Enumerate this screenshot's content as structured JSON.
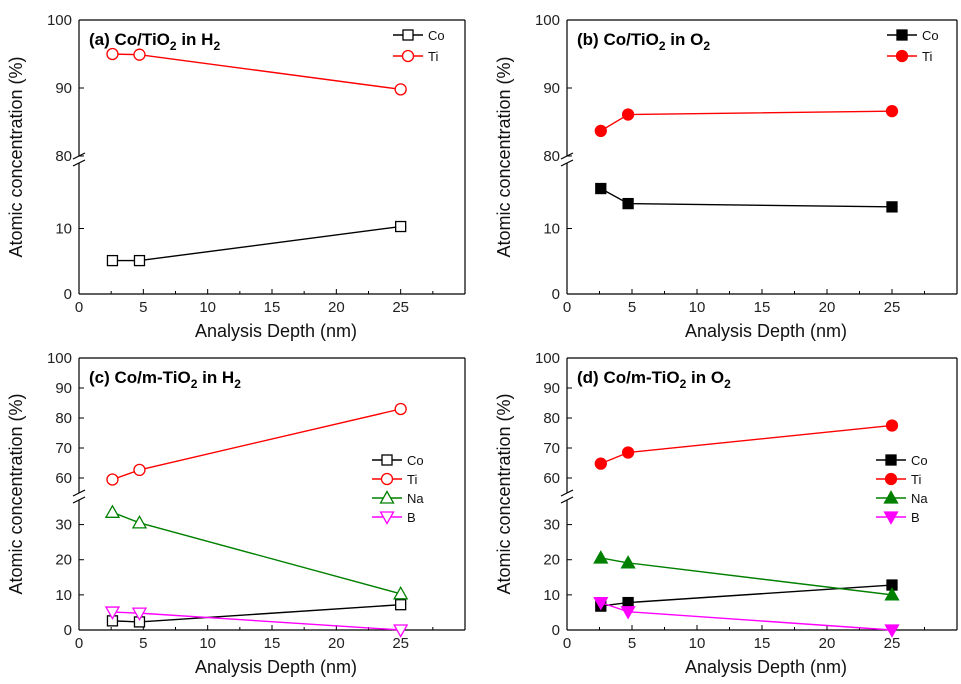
{
  "chart_data": [
    {
      "panel": "a",
      "type": "line",
      "title": {
        "prefix": "(a)",
        "base": "Co/TiO",
        "sub": "2",
        "mid": " in H",
        "sub2": "2"
      },
      "xlabel": "Analysis Depth (nm)",
      "ylabel": "Atomic concentration (%)",
      "xlim": [
        0,
        30
      ],
      "xticks": [
        0,
        5,
        10,
        15,
        20,
        25
      ],
      "axis_break": true,
      "lower_ylim": [
        0,
        20
      ],
      "lower_yticks": [
        0,
        10
      ],
      "upper_ylim": [
        80,
        100
      ],
      "upper_yticks": [
        80,
        90,
        100
      ],
      "legend_position": "top-right",
      "series": [
        {
          "name": "Co",
          "color": "#000000",
          "marker": "square",
          "filled": false,
          "x": [
            2.6,
            4.7,
            25
          ],
          "values": [
            5.1,
            5.1,
            10.3
          ]
        },
        {
          "name": "Ti",
          "color": "#ff0000",
          "marker": "circle",
          "filled": false,
          "x": [
            2.6,
            4.7,
            25
          ],
          "values": [
            95.0,
            94.9,
            89.8
          ]
        }
      ]
    },
    {
      "panel": "b",
      "type": "line",
      "title": {
        "prefix": "(b)",
        "base": "Co/TiO",
        "sub": "2",
        "mid": " in O",
        "sub2": "2"
      },
      "xlabel": "Analysis Depth (nm)",
      "ylabel": "Atomic concentration (%)",
      "xlim": [
        0,
        30
      ],
      "xticks": [
        0,
        5,
        10,
        15,
        20,
        25
      ],
      "axis_break": true,
      "lower_ylim": [
        0,
        20
      ],
      "lower_yticks": [
        0,
        10
      ],
      "upper_ylim": [
        80,
        100
      ],
      "upper_yticks": [
        80,
        90,
        100
      ],
      "legend_position": "top-right",
      "series": [
        {
          "name": "Co",
          "color": "#000000",
          "marker": "square",
          "filled": true,
          "x": [
            2.6,
            4.7,
            25
          ],
          "values": [
            16.1,
            13.8,
            13.3
          ]
        },
        {
          "name": "Ti",
          "color": "#ff0000",
          "marker": "circle",
          "filled": true,
          "x": [
            2.6,
            4.7,
            25
          ],
          "values": [
            83.7,
            86.1,
            86.6
          ]
        }
      ]
    },
    {
      "panel": "c",
      "type": "line",
      "title": {
        "prefix": "(c)",
        "base": "Co/m-TiO",
        "sub": "2",
        "mid": " in H",
        "sub2": "2"
      },
      "xlabel": "Analysis Depth (nm)",
      "ylabel": "Atomic concentration (%)",
      "xlim": [
        0,
        30
      ],
      "xticks": [
        0,
        5,
        10,
        15,
        20,
        25
      ],
      "axis_break": true,
      "lower_ylim": [
        0,
        37
      ],
      "lower_yticks": [
        0,
        10,
        20,
        30
      ],
      "upper_ylim": [
        55,
        100
      ],
      "upper_yticks": [
        60,
        70,
        80,
        90,
        100
      ],
      "legend_position": "right",
      "series": [
        {
          "name": "Co",
          "color": "#000000",
          "marker": "square",
          "filled": false,
          "x": [
            2.6,
            4.7,
            25
          ],
          "values": [
            2.6,
            2.3,
            7.2
          ]
        },
        {
          "name": "Ti",
          "color": "#ff0000",
          "marker": "circle",
          "filled": false,
          "x": [
            2.6,
            4.7,
            25
          ],
          "values": [
            59.5,
            62.7,
            83.0
          ]
        },
        {
          "name": "Na",
          "color": "#008000",
          "marker": "triangle-up",
          "filled": false,
          "x": [
            2.6,
            4.7,
            25
          ],
          "values": [
            33.5,
            30.5,
            10.3
          ]
        },
        {
          "name": "B",
          "color": "#ff00ff",
          "marker": "triangle-down",
          "filled": false,
          "x": [
            2.6,
            4.7,
            25
          ],
          "values": [
            5.1,
            4.8,
            0.0
          ]
        }
      ]
    },
    {
      "panel": "d",
      "type": "line",
      "title": {
        "prefix": "(d)",
        "base": "Co/m-TiO",
        "sub": "2",
        "mid": " in O",
        "sub2": "2"
      },
      "xlabel": "Analysis Depth (nm)",
      "ylabel": "Atomic concentration (%)",
      "xlim": [
        0,
        30
      ],
      "xticks": [
        0,
        5,
        10,
        15,
        20,
        25
      ],
      "axis_break": true,
      "lower_ylim": [
        0,
        37
      ],
      "lower_yticks": [
        0,
        10,
        20,
        30
      ],
      "upper_ylim": [
        55,
        100
      ],
      "upper_yticks": [
        60,
        70,
        80,
        90,
        100
      ],
      "legend_position": "right",
      "series": [
        {
          "name": "Co",
          "color": "#000000",
          "marker": "square",
          "filled": true,
          "x": [
            2.6,
            4.7,
            25
          ],
          "values": [
            6.8,
            7.8,
            12.8
          ]
        },
        {
          "name": "Ti",
          "color": "#ff0000",
          "marker": "circle",
          "filled": true,
          "x": [
            2.6,
            4.7,
            25
          ],
          "values": [
            64.8,
            68.5,
            77.5
          ]
        },
        {
          "name": "Na",
          "color": "#008000",
          "marker": "triangle-up",
          "filled": true,
          "x": [
            2.6,
            4.7,
            25
          ],
          "values": [
            20.5,
            19.1,
            10.0
          ]
        },
        {
          "name": "B",
          "color": "#ff00ff",
          "marker": "triangle-down",
          "filled": true,
          "x": [
            2.6,
            4.7,
            25
          ],
          "values": [
            7.8,
            5.2,
            0.0
          ]
        }
      ]
    }
  ]
}
